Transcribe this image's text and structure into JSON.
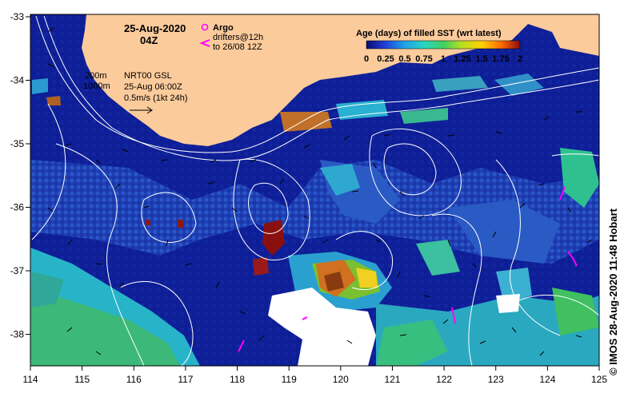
{
  "map": {
    "date_label": "25-Aug-2020",
    "time_label": "04Z",
    "argo_label": "Argo",
    "drifters_label_1": "drifters@12h",
    "drifters_label_2": "to 26/08 12Z",
    "isobath_200": "200m",
    "isobath_1000": "1000m",
    "product_line_1": "NRT00 GSL",
    "product_line_2": "25-Aug 06:00Z",
    "product_line_3": "0.5m/s (1kt 24h)",
    "colorbar_title": "Age (days) of filled SST (wrt latest)",
    "colorbar_ticks": [
      "0",
      "0.25",
      "0.5",
      "0.75",
      "1",
      "1.25",
      "1.5",
      "1.75",
      "2"
    ],
    "lon_ticks": [
      "114",
      "115",
      "116",
      "117",
      "118",
      "119",
      "120",
      "121",
      "122",
      "123",
      "124",
      "125"
    ],
    "lat_ticks": [
      "-33",
      "-34",
      "-35",
      "-36",
      "-37",
      "-38"
    ],
    "credit": "© IMOS 28-Aug-2020 11:48 Hobart"
  },
  "colors": {
    "ocean_deep": "#0a1a8c",
    "ocean_mid": "#1f3fb4",
    "land": "#fbcb9c",
    "argo": "#ff00ff",
    "drifter": "#ff00ff",
    "contour": "#ffffff"
  }
}
